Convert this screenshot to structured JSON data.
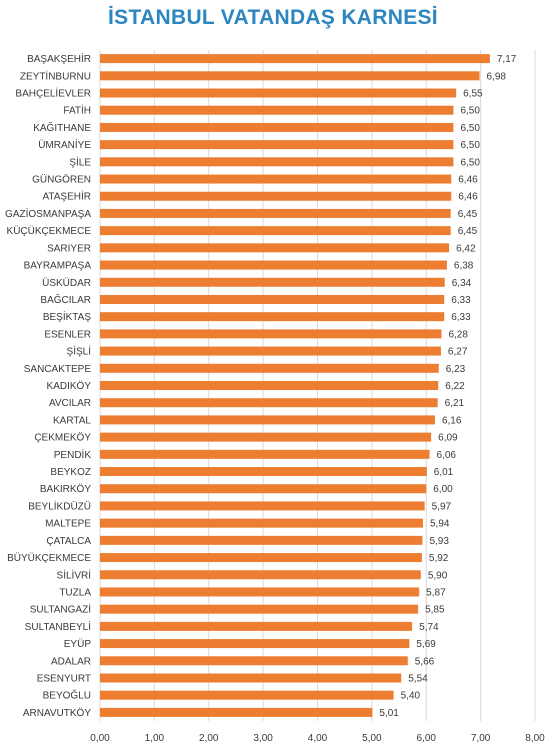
{
  "chart_data": {
    "type": "bar",
    "orientation": "horizontal",
    "title": "İSTANBUL VATANDAŞ KARNESİ",
    "categories": [
      "BAŞAKŞEHİR",
      "ZEYTİNBURNU",
      "BAHÇELİEVLER",
      "FATİH",
      "KAĞITHANE",
      "ÜMRANİYE",
      "ŞİLE",
      "GÜNGÖREN",
      "ATAŞEHİR",
      "GAZİOSMANPAŞA",
      "KÜÇÜKÇEKMECE",
      "SARIYER",
      "BAYRAMPAŞA",
      "ÜSKÜDAR",
      "BAĞCILAR",
      "BEŞİKTAŞ",
      "ESENLER",
      "ŞİŞLİ",
      "SANCAKTEPE",
      "KADIKÖY",
      "AVCILAR",
      "KARTAL",
      "ÇEKMEKÖY",
      "PENDİK",
      "BEYKOZ",
      "BAKIRKÖY",
      "BEYLİKDÜZÜ",
      "MALTEPE",
      "ÇATALCA",
      "BÜYÜKÇEKMECE",
      "SİLİVRİ",
      "TUZLA",
      "SULTANGAZİ",
      "SULTANBEYLİ",
      "EYÜP",
      "ADALAR",
      "ESENYURT",
      "BEYOĞLU",
      "ARNAVUTKÖY"
    ],
    "values": [
      7.17,
      6.98,
      6.55,
      6.5,
      6.5,
      6.5,
      6.5,
      6.46,
      6.46,
      6.45,
      6.45,
      6.42,
      6.38,
      6.34,
      6.33,
      6.33,
      6.28,
      6.27,
      6.23,
      6.22,
      6.21,
      6.16,
      6.09,
      6.06,
      6.01,
      6.0,
      5.97,
      5.94,
      5.93,
      5.92,
      5.9,
      5.87,
      5.85,
      5.74,
      5.69,
      5.66,
      5.54,
      5.4,
      5.01
    ],
    "value_labels": [
      "7,17",
      "6,98",
      "6,55",
      "6,50",
      "6,50",
      "6,50",
      "6,50",
      "6,46",
      "6,46",
      "6,45",
      "6,45",
      "6,42",
      "6,38",
      "6,34",
      "6,33",
      "6,33",
      "6,28",
      "6,27",
      "6,23",
      "6,22",
      "6,21",
      "6,16",
      "6,09",
      "6,06",
      "6,01",
      "6,00",
      "5,97",
      "5,94",
      "5,93",
      "5,92",
      "5,90",
      "5,87",
      "5,85",
      "5,74",
      "5,69",
      "5,66",
      "5,54",
      "5,40",
      "5,01"
    ],
    "xlim": [
      0,
      8
    ],
    "x_ticks": [
      0,
      1,
      2,
      3,
      4,
      5,
      6,
      7,
      8
    ],
    "x_tick_labels": [
      "0,00",
      "1,00",
      "2,00",
      "3,00",
      "4,00",
      "5,00",
      "6,00",
      "7,00",
      "8,00"
    ],
    "grid": true,
    "bar_color": "#ed7d31",
    "grid_color": "#d9d9d9"
  }
}
